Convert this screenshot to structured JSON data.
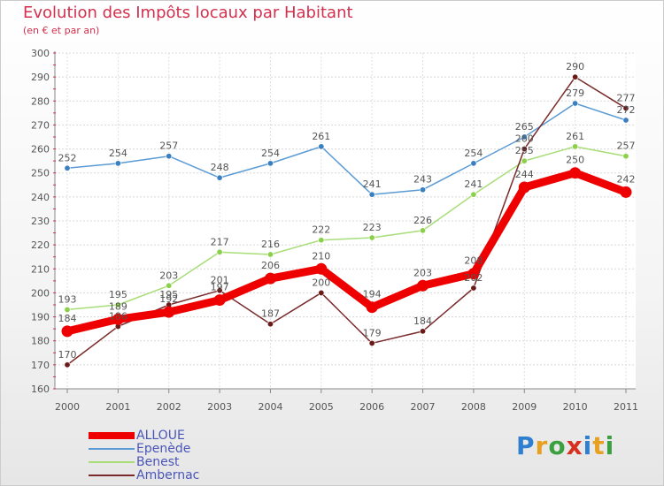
{
  "header": {
    "title": "Evolution des Impôts locaux par Habitant",
    "subtitle": "(en € et par an)"
  },
  "chart_data": {
    "type": "line",
    "title": "Evolution des Impôts locaux par Habitant",
    "subtitle": "(en € et par an)",
    "xlabel": "",
    "ylabel": "",
    "categories": [
      "2000",
      "2001",
      "2002",
      "2003",
      "2004",
      "2005",
      "2006",
      "2007",
      "2008",
      "2009",
      "2010",
      "2011"
    ],
    "ylim": [
      160,
      300
    ],
    "yticks": [
      160,
      170,
      180,
      190,
      200,
      210,
      220,
      230,
      240,
      250,
      260,
      270,
      280,
      290,
      300
    ],
    "grid": true,
    "legend_position": "bottom-left",
    "series": [
      {
        "name": "Epenède",
        "color": "#5b9bd5",
        "marker": "#3a7fc0",
        "values": [
          252,
          254,
          257,
          248,
          254,
          261,
          241,
          243,
          254,
          265,
          279,
          272
        ]
      },
      {
        "name": "Benest",
        "color": "#a8dd78",
        "marker": "#8bd04a",
        "values": [
          193,
          195,
          203,
          217,
          216,
          222,
          223,
          226,
          241,
          255,
          261,
          257
        ]
      },
      {
        "name": "Ambernac",
        "color": "#7a2a2a",
        "marker": "#6b1a1a",
        "values": [
          170,
          186,
          195,
          201,
          187,
          200,
          179,
          184,
          202,
          260,
          290,
          277
        ]
      },
      {
        "name": "ALLOUE",
        "color": "#ee0000",
        "marker": "#ee0000",
        "values": [
          184,
          189,
          192,
          197,
          206,
          210,
          194,
          203,
          208,
          244,
          250,
          242
        ],
        "bold": true
      }
    ],
    "data_labels": [
      [
        "252",
        "254",
        "257",
        "248",
        "254",
        "261",
        "241",
        "243",
        "254",
        "265",
        "279",
        "272"
      ],
      [
        "193",
        "195",
        "203",
        "217",
        "216",
        "222",
        "223",
        "226",
        "241",
        "255",
        "261",
        "257"
      ],
      [
        "170",
        "186",
        "195",
        "201",
        "187",
        "200",
        "179",
        "184",
        "202",
        "260",
        "290",
        "277"
      ],
      [
        "184",
        "189",
        "192",
        "197",
        "206",
        "210",
        "194",
        "203",
        "208",
        "244",
        "250",
        "242"
      ]
    ]
  },
  "legend": {
    "items": [
      {
        "label": "ALLOUE",
        "color": "#ee0000",
        "thickness": 8
      },
      {
        "label": "Epenède",
        "color": "#5b9bd5",
        "thickness": 2
      },
      {
        "label": "Benest",
        "color": "#a8dd78",
        "thickness": 2
      },
      {
        "label": "Ambernac",
        "color": "#7a2a2a",
        "thickness": 2
      }
    ]
  },
  "logo": {
    "letters": [
      "P",
      "r",
      "o",
      "x",
      "i",
      "t",
      "i"
    ],
    "colors": [
      "#2f7fd0",
      "#e8a020",
      "#3aa040",
      "#d83020",
      "#2f7fd0",
      "#e8a020",
      "#3aa040"
    ]
  }
}
